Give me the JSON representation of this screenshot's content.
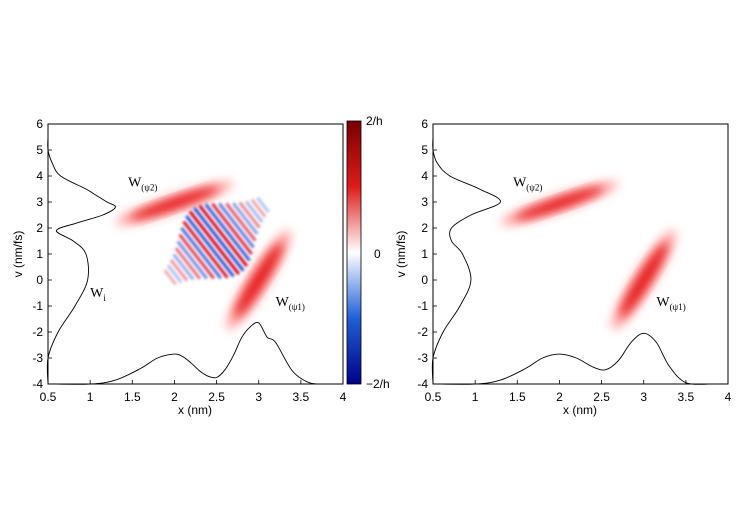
{
  "chart_data": [
    {
      "type": "heatmap",
      "panel": "left",
      "xlabel": "x (nm)",
      "ylabel": "v (nm/fs)",
      "xlim": [
        0.5,
        4
      ],
      "ylim": [
        -4,
        6
      ],
      "xticks": [
        "0.5",
        "1",
        "1.5",
        "2",
        "2.5",
        "3",
        "3.5",
        "4"
      ],
      "yticks": [
        "-4",
        "-3",
        "-2",
        "-1",
        "0",
        "1",
        "2",
        "3",
        "4",
        "5",
        "6"
      ],
      "annotations": [
        {
          "main": "W",
          "sub": "(ψ2)",
          "x": 1.45,
          "y": 3.6
        },
        {
          "main": "W",
          "sub": "i",
          "x": 1.0,
          "y": -0.65
        },
        {
          "main": "W",
          "sub": "(ψ1)",
          "x": 3.2,
          "y": -1.0
        }
      ],
      "colorbar": {
        "ticks": [
          "2/h",
          "0",
          "−2/h"
        ],
        "colors": [
          "#00008b",
          "#1f5fd9",
          "#ffffff",
          "#e01a1a",
          "#7a0000"
        ]
      },
      "components": [
        {
          "name": "W_psi2",
          "center_x": 2.0,
          "center_y": 2.95,
          "sign": "positive"
        },
        {
          "name": "W_psi1",
          "center_x": 3.0,
          "center_y": 0.0,
          "sign": "positive"
        },
        {
          "name": "W_i",
          "center_x": 2.5,
          "center_y": 1.5,
          "sign": "oscillating"
        }
      ],
      "series": [
        {
          "axis": "bottom",
          "marginal": "position",
          "x": [
            0.5,
            1.0,
            1.3,
            1.6,
            1.8,
            2.0,
            2.1,
            2.2,
            2.3,
            2.4,
            2.5,
            2.6,
            2.7,
            2.8,
            2.9,
            3.0,
            3.1,
            3.2,
            3.4,
            3.6,
            3.8
          ],
          "y": [
            -4.0,
            -4.0,
            -3.85,
            -3.4,
            -3.0,
            -2.85,
            -2.95,
            -3.2,
            -3.5,
            -3.7,
            -3.75,
            -3.45,
            -2.9,
            -2.2,
            -1.8,
            -1.65,
            -2.2,
            -2.4,
            -3.5,
            -3.95,
            -4.0
          ]
        },
        {
          "axis": "left",
          "marginal": "velocity",
          "v": [
            -4.0,
            -3.0,
            -2.0,
            -1.0,
            0.0,
            1.0,
            1.5,
            1.9,
            2.2,
            2.5,
            2.8,
            3.0,
            3.3,
            3.5,
            4.0,
            4.5,
            5.0,
            5.5
          ],
          "x": [
            0.5,
            0.5,
            0.62,
            0.82,
            0.97,
            0.95,
            0.8,
            0.6,
            0.85,
            1.15,
            1.3,
            1.2,
            1.05,
            0.95,
            0.65,
            0.55,
            0.5,
            0.5
          ]
        }
      ]
    },
    {
      "type": "heatmap",
      "panel": "right",
      "xlabel": "x (nm)",
      "ylabel": "v (nm/fs)",
      "xlim": [
        0.5,
        4
      ],
      "ylim": [
        -4,
        6
      ],
      "xticks": [
        "0.5",
        "1",
        "1.5",
        "2",
        "2.5",
        "3",
        "3.5",
        "4"
      ],
      "yticks": [
        "-4",
        "-3",
        "-2",
        "-1",
        "0",
        "1",
        "2",
        "3",
        "4",
        "5",
        "6"
      ],
      "annotations": [
        {
          "main": "W",
          "sub": "(ψ2)",
          "x": 1.45,
          "y": 3.6
        },
        {
          "main": "W",
          "sub": "(ψ1)",
          "x": 3.15,
          "y": -1.0
        }
      ],
      "components": [
        {
          "name": "W_psi2",
          "center_x": 2.0,
          "center_y": 2.95,
          "sign": "positive"
        },
        {
          "name": "W_psi1",
          "center_x": 3.0,
          "center_y": 0.0,
          "sign": "positive"
        }
      ],
      "series": [
        {
          "axis": "bottom",
          "marginal": "position",
          "x": [
            0.5,
            1.0,
            1.3,
            1.6,
            1.8,
            2.0,
            2.2,
            2.4,
            2.55,
            2.7,
            2.85,
            3.0,
            3.15,
            3.3,
            3.5,
            3.8
          ],
          "y": [
            -4.0,
            -4.0,
            -3.85,
            -3.4,
            -3.0,
            -2.85,
            -3.0,
            -3.35,
            -3.45,
            -3.1,
            -2.4,
            -2.05,
            -2.4,
            -3.3,
            -3.95,
            -4.0
          ]
        },
        {
          "axis": "left",
          "marginal": "velocity",
          "v": [
            -4.0,
            -3.0,
            -2.0,
            -1.0,
            0.0,
            1.0,
            1.5,
            2.0,
            2.5,
            3.0,
            3.5,
            4.0,
            4.5,
            5.0,
            5.5
          ],
          "x": [
            0.5,
            0.5,
            0.62,
            0.82,
            0.95,
            0.85,
            0.72,
            0.72,
            0.95,
            1.3,
            1.05,
            0.7,
            0.55,
            0.5,
            0.5
          ]
        }
      ]
    }
  ]
}
